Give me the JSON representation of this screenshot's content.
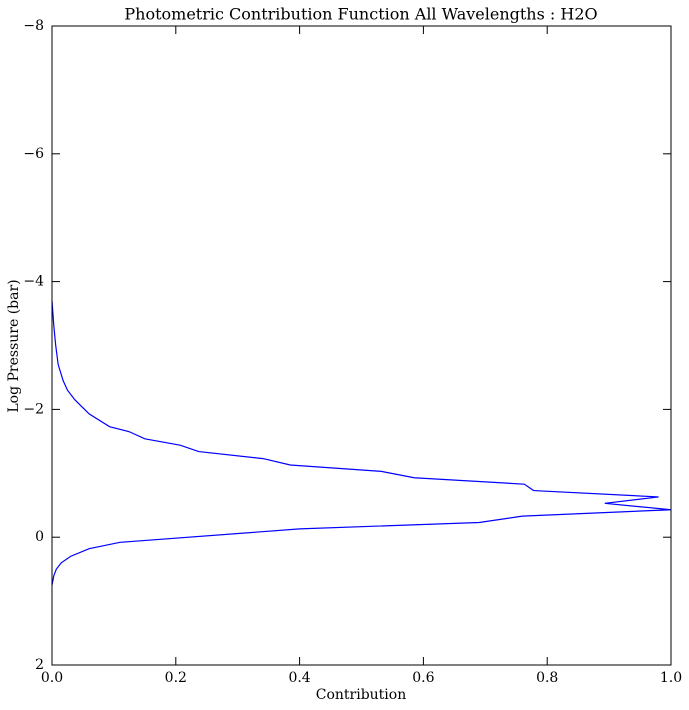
{
  "chart_data": {
    "type": "line",
    "title": "Photometric Contribution Function All Wavelengths : H2O",
    "x_label": "Contribution",
    "y_label": "Log Pressure (bar)",
    "xlim": [
      0,
      1
    ],
    "ylim": [
      2,
      -8
    ],
    "xticks": [
      {
        "value": 0,
        "label": "0.0"
      },
      0.2,
      0.4,
      0.6,
      0.8,
      {
        "value": 1,
        "label": "1.0"
      }
    ],
    "yticks": [
      {
        "value": -8,
        "label": "−8"
      },
      {
        "value": -6,
        "label": "−6"
      },
      {
        "value": -4,
        "label": "−4"
      },
      {
        "value": -2,
        "label": "−2"
      },
      0,
      2
    ],
    "grid": false,
    "series": [
      {
        "color": "#0000ff",
        "x": [
          0,
          0.003,
          0.006,
          0.01,
          0.018,
          0.025,
          0.037,
          0.06,
          0.093,
          0.125,
          0.15,
          0.207,
          0.237,
          0.341,
          0.385,
          0.532,
          0.585,
          0.763,
          0.778,
          0.98,
          0.893,
          1.0,
          0.76,
          0.69,
          0.4,
          0.11,
          0.06,
          0.03,
          0.015,
          0.007,
          0.003,
          0
        ],
        "values": [
          -3.7,
          -3.3,
          -3.0,
          -2.7,
          -2.45,
          -2.3,
          -2.15,
          -1.93,
          -1.73,
          -1.65,
          -1.54,
          -1.44,
          -1.34,
          -1.23,
          -1.13,
          -1.03,
          -0.93,
          -0.83,
          -0.73,
          -0.63,
          -0.53,
          -0.43,
          -0.33,
          -0.23,
          -0.13,
          0.08,
          0.18,
          0.3,
          0.4,
          0.5,
          0.6,
          0.75
        ]
      }
    ]
  }
}
